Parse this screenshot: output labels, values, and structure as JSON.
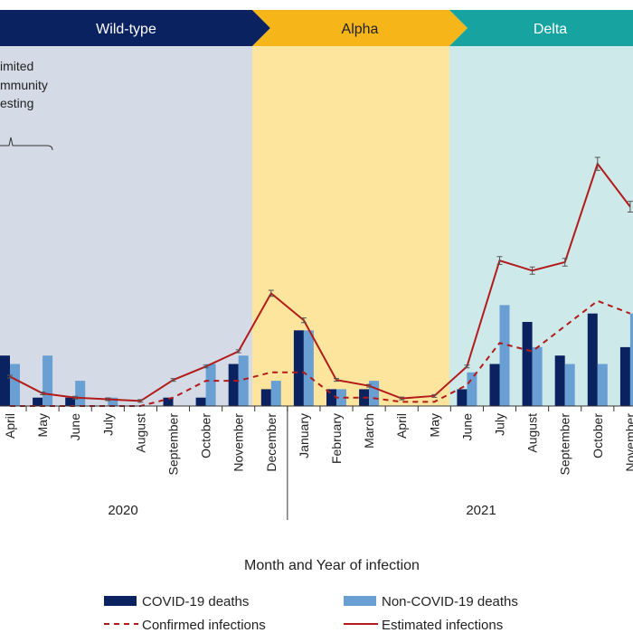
{
  "colors": {
    "covid_bar": "#0b2260",
    "noncovid_bar": "#6a9fd3",
    "line": "#b31b1b",
    "wild_band": "#d4dbe6",
    "wild_arrow": "#0b2260",
    "alpha_band": "#fde59e",
    "alpha_arrow": "#f6b519",
    "delta_band": "#cde9ea",
    "delta_arrow": "#17a3a0"
  },
  "variants": [
    {
      "label": "Wild-type",
      "band": "wild_band",
      "arrow": "wild_arrow"
    },
    {
      "label": "Alpha",
      "band": "alpha_band",
      "arrow": "alpha_arrow"
    },
    {
      "label": "Delta",
      "band": "delta_band",
      "arrow": "delta_arrow"
    }
  ],
  "annotation": {
    "lines": [
      "imited",
      "mmunity",
      "esting"
    ]
  },
  "chart_data": {
    "type": "bar",
    "xlabel": "Month and Year of infection",
    "ylabel": "",
    "categories": [
      "April",
      "May",
      "June",
      "July",
      "August",
      "September",
      "October",
      "November",
      "December",
      "January",
      "February",
      "March",
      "April",
      "May",
      "June",
      "July",
      "August",
      "September",
      "October",
      "November"
    ],
    "years": [
      {
        "label": "2020",
        "from": 0,
        "to": 8
      },
      {
        "label": "2021",
        "from": 9,
        "to": 19
      }
    ],
    "series": [
      {
        "name": "COVID-19 deaths",
        "kind": "bar",
        "values": [
          6,
          1,
          1,
          0,
          0,
          1,
          1,
          5,
          2,
          9,
          2,
          2,
          0,
          0,
          2,
          5,
          10,
          6,
          11,
          7
        ]
      },
      {
        "name": "Non-COVID-19 deaths",
        "kind": "bar",
        "values": [
          5,
          6,
          3,
          1,
          0,
          0,
          5,
          6,
          3,
          9,
          2,
          3,
          0,
          0,
          4,
          12,
          7,
          5,
          5,
          11
        ]
      },
      {
        "name": "Confirmed infections",
        "kind": "dashed-line",
        "values": [
          0,
          0,
          0,
          0,
          0,
          1,
          3,
          3,
          4,
          4,
          1,
          1,
          0.5,
          0.5,
          2.5,
          7.5,
          6.5,
          9.5,
          12.5,
          11
        ]
      },
      {
        "name": "Estimated infections",
        "kind": "line",
        "values": [
          3.5,
          1.5,
          1,
          0.8,
          0.6,
          3.1,
          4.7,
          6.5,
          13.4,
          10.2,
          3.1,
          2.4,
          0.9,
          1.2,
          4.7,
          17.3,
          16.1,
          17.1,
          28.8,
          23.7
        ]
      }
    ],
    "ylim": [
      0,
      36
    ],
    "legend_position": "bottom",
    "grid": false
  }
}
